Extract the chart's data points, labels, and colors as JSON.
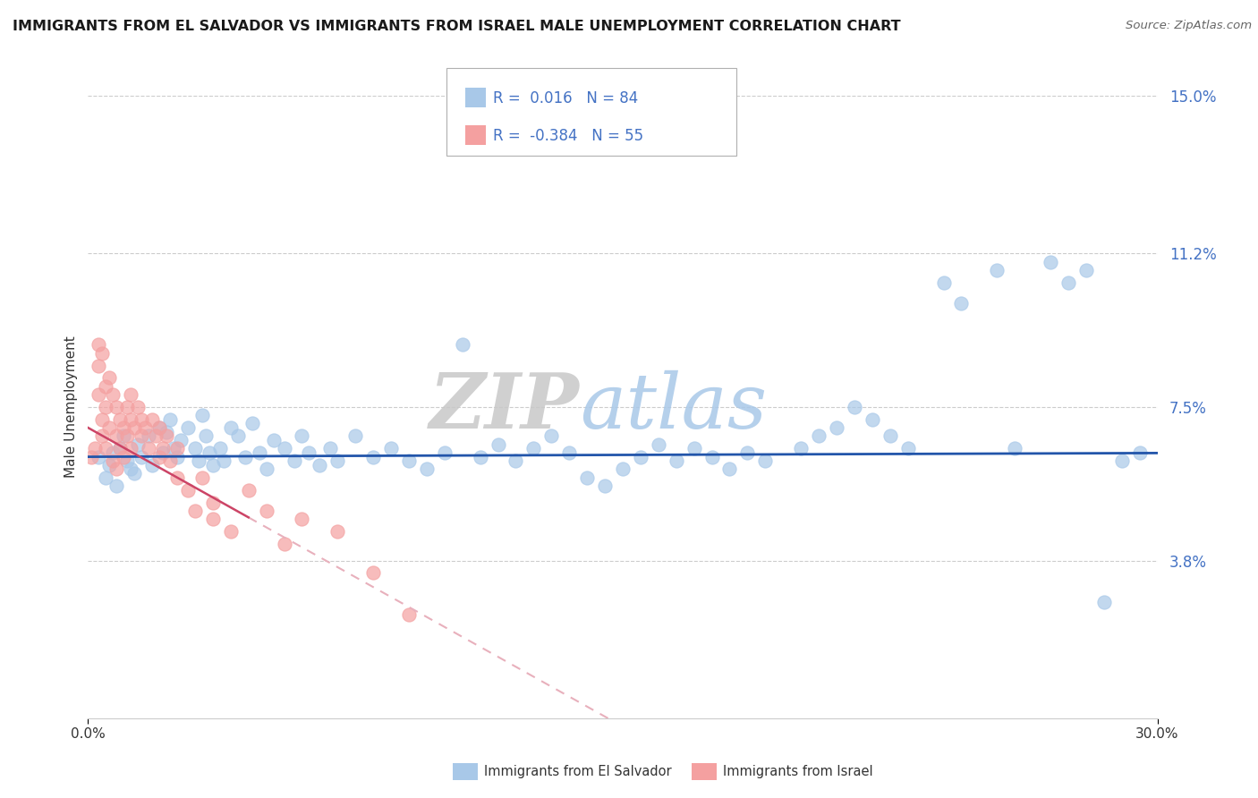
{
  "title": "IMMIGRANTS FROM EL SALVADOR VS IMMIGRANTS FROM ISRAEL MALE UNEMPLOYMENT CORRELATION CHART",
  "source": "Source: ZipAtlas.com",
  "ylabel": "Male Unemployment",
  "y_ticks": [
    3.8,
    7.5,
    11.2,
    15.0
  ],
  "x_range": [
    0.0,
    30.0
  ],
  "y_range": [
    0.0,
    15.0
  ],
  "legend_blue": {
    "R": "0.016",
    "N": "84",
    "label": "Immigrants from El Salvador"
  },
  "legend_pink": {
    "R": "-0.384",
    "N": "55",
    "label": "Immigrants from Israel"
  },
  "blue_color": "#a8c8e8",
  "pink_color": "#f4a0a0",
  "trendline_blue_color": "#2255aa",
  "trendline_pink_solid_color": "#cc4466",
  "trendline_pink_dashed_color": "#e8b0bc",
  "watermark": "ZIPatlas",
  "background_color": "#ffffff",
  "blue_scatter": [
    [
      0.3,
      6.3
    ],
    [
      0.5,
      5.8
    ],
    [
      0.6,
      6.1
    ],
    [
      0.7,
      6.4
    ],
    [
      0.8,
      5.6
    ],
    [
      0.9,
      6.5
    ],
    [
      1.0,
      6.8
    ],
    [
      1.1,
      6.2
    ],
    [
      1.2,
      6.0
    ],
    [
      1.3,
      5.9
    ],
    [
      1.4,
      6.6
    ],
    [
      1.5,
      6.3
    ],
    [
      1.7,
      6.8
    ],
    [
      1.8,
      6.1
    ],
    [
      2.0,
      7.0
    ],
    [
      2.1,
      6.4
    ],
    [
      2.2,
      6.9
    ],
    [
      2.3,
      7.2
    ],
    [
      2.4,
      6.5
    ],
    [
      2.5,
      6.3
    ],
    [
      2.6,
      6.7
    ],
    [
      2.8,
      7.0
    ],
    [
      3.0,
      6.5
    ],
    [
      3.1,
      6.2
    ],
    [
      3.2,
      7.3
    ],
    [
      3.3,
      6.8
    ],
    [
      3.4,
      6.4
    ],
    [
      3.5,
      6.1
    ],
    [
      3.7,
      6.5
    ],
    [
      3.8,
      6.2
    ],
    [
      4.0,
      7.0
    ],
    [
      4.2,
      6.8
    ],
    [
      4.4,
      6.3
    ],
    [
      4.6,
      7.1
    ],
    [
      4.8,
      6.4
    ],
    [
      5.0,
      6.0
    ],
    [
      5.2,
      6.7
    ],
    [
      5.5,
      6.5
    ],
    [
      5.8,
      6.2
    ],
    [
      6.0,
      6.8
    ],
    [
      6.2,
      6.4
    ],
    [
      6.5,
      6.1
    ],
    [
      6.8,
      6.5
    ],
    [
      7.0,
      6.2
    ],
    [
      7.5,
      6.8
    ],
    [
      8.0,
      6.3
    ],
    [
      8.5,
      6.5
    ],
    [
      9.0,
      6.2
    ],
    [
      9.5,
      6.0
    ],
    [
      10.0,
      6.4
    ],
    [
      10.5,
      9.0
    ],
    [
      11.0,
      6.3
    ],
    [
      11.5,
      6.6
    ],
    [
      12.0,
      6.2
    ],
    [
      12.5,
      6.5
    ],
    [
      13.0,
      6.8
    ],
    [
      13.5,
      6.4
    ],
    [
      14.0,
      5.8
    ],
    [
      14.5,
      5.6
    ],
    [
      15.0,
      6.0
    ],
    [
      15.5,
      6.3
    ],
    [
      16.0,
      6.6
    ],
    [
      16.5,
      6.2
    ],
    [
      17.0,
      6.5
    ],
    [
      17.5,
      6.3
    ],
    [
      18.0,
      6.0
    ],
    [
      18.5,
      6.4
    ],
    [
      19.0,
      6.2
    ],
    [
      20.0,
      6.5
    ],
    [
      20.5,
      6.8
    ],
    [
      21.0,
      7.0
    ],
    [
      21.5,
      7.5
    ],
    [
      22.0,
      7.2
    ],
    [
      22.5,
      6.8
    ],
    [
      23.0,
      6.5
    ],
    [
      24.0,
      10.5
    ],
    [
      24.5,
      10.0
    ],
    [
      25.5,
      10.8
    ],
    [
      26.0,
      6.5
    ],
    [
      27.0,
      11.0
    ],
    [
      27.5,
      10.5
    ],
    [
      28.5,
      2.8
    ],
    [
      29.5,
      6.4
    ],
    [
      28.0,
      10.8
    ],
    [
      29.0,
      6.2
    ]
  ],
  "pink_scatter": [
    [
      0.1,
      6.3
    ],
    [
      0.2,
      6.5
    ],
    [
      0.3,
      7.8
    ],
    [
      0.3,
      8.5
    ],
    [
      0.4,
      7.2
    ],
    [
      0.4,
      6.8
    ],
    [
      0.5,
      8.0
    ],
    [
      0.5,
      7.5
    ],
    [
      0.5,
      6.5
    ],
    [
      0.6,
      8.2
    ],
    [
      0.6,
      7.0
    ],
    [
      0.7,
      7.8
    ],
    [
      0.7,
      6.2
    ],
    [
      0.8,
      7.5
    ],
    [
      0.8,
      6.8
    ],
    [
      0.8,
      6.0
    ],
    [
      0.9,
      7.2
    ],
    [
      0.9,
      6.5
    ],
    [
      1.0,
      7.0
    ],
    [
      1.0,
      6.3
    ],
    [
      1.1,
      7.5
    ],
    [
      1.1,
      6.8
    ],
    [
      1.2,
      7.8
    ],
    [
      1.2,
      7.2
    ],
    [
      1.2,
      6.5
    ],
    [
      1.3,
      7.0
    ],
    [
      1.4,
      7.5
    ],
    [
      1.5,
      7.2
    ],
    [
      1.5,
      6.8
    ],
    [
      1.6,
      7.0
    ],
    [
      1.7,
      6.5
    ],
    [
      1.8,
      7.2
    ],
    [
      1.9,
      6.8
    ],
    [
      2.0,
      7.0
    ],
    [
      2.0,
      6.3
    ],
    [
      2.1,
      6.5
    ],
    [
      2.2,
      6.8
    ],
    [
      2.3,
      6.2
    ],
    [
      2.5,
      5.8
    ],
    [
      2.5,
      6.5
    ],
    [
      2.8,
      5.5
    ],
    [
      3.0,
      5.0
    ],
    [
      3.2,
      5.8
    ],
    [
      3.5,
      5.2
    ],
    [
      3.5,
      4.8
    ],
    [
      4.0,
      4.5
    ],
    [
      4.5,
      5.5
    ],
    [
      0.4,
      8.8
    ],
    [
      5.0,
      5.0
    ],
    [
      5.5,
      4.2
    ],
    [
      6.0,
      4.8
    ],
    [
      7.0,
      4.5
    ],
    [
      8.0,
      3.5
    ],
    [
      0.3,
      9.0
    ],
    [
      9.0,
      2.5
    ]
  ],
  "blue_trend_intercept": 6.3,
  "blue_trend_slope": 0.003,
  "pink_trend_intercept": 7.0,
  "pink_trend_slope": -0.48,
  "pink_solid_end": 4.5
}
